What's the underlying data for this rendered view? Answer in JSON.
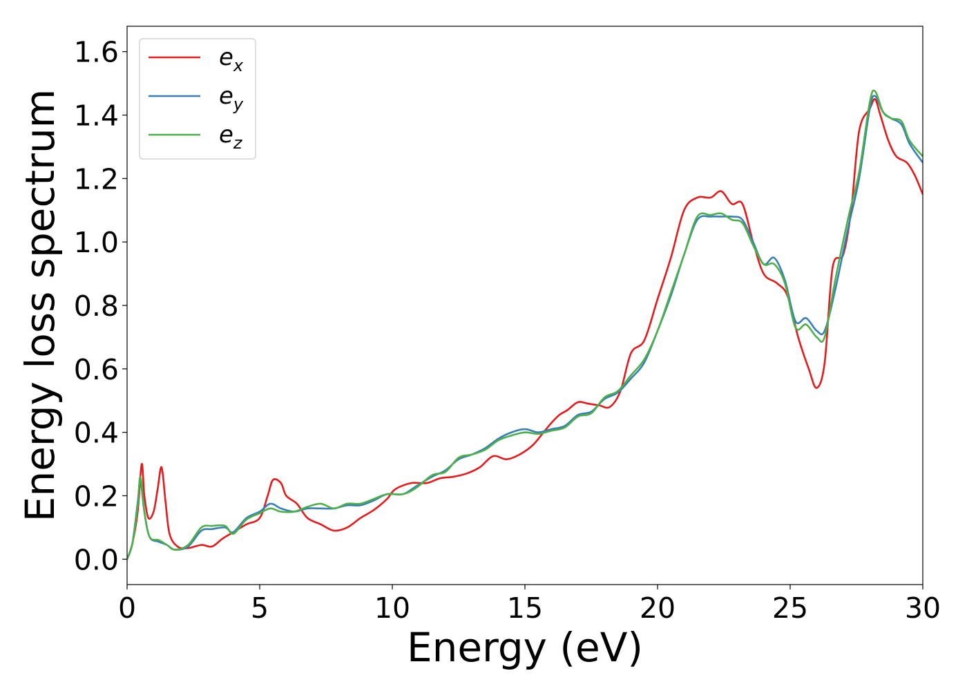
{
  "chart_data": {
    "type": "line",
    "xlabel": "Energy (eV)",
    "ylabel": "Energy loss spectrum",
    "xlim": [
      0,
      30
    ],
    "ylim": [
      -0.08,
      1.68
    ],
    "xticks": [
      0,
      5,
      10,
      15,
      20,
      25,
      30
    ],
    "yticks": [
      0.0,
      0.2,
      0.4,
      0.6,
      0.8,
      1.0,
      1.2,
      1.4,
      1.6
    ],
    "xtick_labels": [
      "0",
      "5",
      "10",
      "15",
      "20",
      "25",
      "30"
    ],
    "ytick_labels": [
      "0.0",
      "0.2",
      "0.4",
      "0.6",
      "0.8",
      "1.0",
      "1.2",
      "1.4",
      "1.6"
    ],
    "grid": false,
    "legend_position": "top-left",
    "series": [
      {
        "name": "e_x",
        "base": "e",
        "sub": "x",
        "color": "#e41a1c",
        "points": [
          [
            0,
            0
          ],
          [
            0.2,
            0.05
          ],
          [
            0.4,
            0.15
          ],
          [
            0.55,
            0.3
          ],
          [
            0.65,
            0.2
          ],
          [
            0.8,
            0.13
          ],
          [
            1.0,
            0.15
          ],
          [
            1.15,
            0.22
          ],
          [
            1.3,
            0.29
          ],
          [
            1.45,
            0.18
          ],
          [
            1.6,
            0.08
          ],
          [
            1.9,
            0.04
          ],
          [
            2.3,
            0.035
          ],
          [
            2.8,
            0.045
          ],
          [
            3.2,
            0.04
          ],
          [
            3.6,
            0.065
          ],
          [
            4.0,
            0.085
          ],
          [
            4.5,
            0.11
          ],
          [
            5.0,
            0.13
          ],
          [
            5.3,
            0.2
          ],
          [
            5.5,
            0.25
          ],
          [
            5.8,
            0.24
          ],
          [
            6.0,
            0.2
          ],
          [
            6.4,
            0.175
          ],
          [
            6.8,
            0.13
          ],
          [
            7.3,
            0.11
          ],
          [
            7.8,
            0.09
          ],
          [
            8.3,
            0.1
          ],
          [
            8.8,
            0.13
          ],
          [
            9.3,
            0.155
          ],
          [
            9.8,
            0.19
          ],
          [
            10.1,
            0.22
          ],
          [
            10.7,
            0.24
          ],
          [
            11.3,
            0.24
          ],
          [
            11.8,
            0.255
          ],
          [
            12.3,
            0.26
          ],
          [
            12.8,
            0.27
          ],
          [
            13.3,
            0.29
          ],
          [
            13.8,
            0.325
          ],
          [
            14.3,
            0.315
          ],
          [
            14.8,
            0.33
          ],
          [
            15.3,
            0.36
          ],
          [
            15.7,
            0.4
          ],
          [
            16.0,
            0.43
          ],
          [
            16.3,
            0.455
          ],
          [
            16.6,
            0.47
          ],
          [
            17.0,
            0.495
          ],
          [
            17.4,
            0.49
          ],
          [
            17.8,
            0.485
          ],
          [
            18.2,
            0.48
          ],
          [
            18.6,
            0.53
          ],
          [
            19.0,
            0.65
          ],
          [
            19.5,
            0.69
          ],
          [
            20.0,
            0.82
          ],
          [
            20.5,
            0.95
          ],
          [
            21.0,
            1.1
          ],
          [
            21.5,
            1.14
          ],
          [
            22.0,
            1.14
          ],
          [
            22.4,
            1.16
          ],
          [
            22.8,
            1.12
          ],
          [
            23.2,
            1.12
          ],
          [
            23.6,
            1.0
          ],
          [
            24.0,
            0.9
          ],
          [
            24.5,
            0.87
          ],
          [
            24.9,
            0.83
          ],
          [
            25.3,
            0.7
          ],
          [
            25.7,
            0.6
          ],
          [
            26.0,
            0.54
          ],
          [
            26.3,
            0.62
          ],
          [
            26.6,
            0.92
          ],
          [
            27.0,
            0.96
          ],
          [
            27.3,
            1.1
          ],
          [
            27.6,
            1.35
          ],
          [
            28.0,
            1.42
          ],
          [
            28.2,
            1.45
          ],
          [
            28.4,
            1.4
          ],
          [
            28.7,
            1.32
          ],
          [
            29.0,
            1.27
          ],
          [
            29.4,
            1.25
          ],
          [
            29.7,
            1.21
          ],
          [
            30.0,
            1.15
          ]
        ]
      },
      {
        "name": "e_y",
        "base": "e",
        "sub": "y",
        "color": "#377eb8",
        "points": [
          [
            0,
            0
          ],
          [
            0.2,
            0.05
          ],
          [
            0.4,
            0.18
          ],
          [
            0.5,
            0.25
          ],
          [
            0.65,
            0.15
          ],
          [
            0.85,
            0.07
          ],
          [
            1.2,
            0.055
          ],
          [
            1.5,
            0.045
          ],
          [
            1.8,
            0.03
          ],
          [
            2.3,
            0.04
          ],
          [
            2.8,
            0.09
          ],
          [
            3.2,
            0.095
          ],
          [
            3.7,
            0.1
          ],
          [
            4.0,
            0.085
          ],
          [
            4.5,
            0.13
          ],
          [
            5.0,
            0.15
          ],
          [
            5.4,
            0.175
          ],
          [
            5.8,
            0.16
          ],
          [
            6.3,
            0.15
          ],
          [
            6.8,
            0.16
          ],
          [
            7.3,
            0.16
          ],
          [
            7.8,
            0.16
          ],
          [
            8.3,
            0.17
          ],
          [
            8.8,
            0.17
          ],
          [
            9.3,
            0.185
          ],
          [
            9.8,
            0.205
          ],
          [
            10.4,
            0.205
          ],
          [
            10.9,
            0.23
          ],
          [
            11.5,
            0.26
          ],
          [
            12.0,
            0.28
          ],
          [
            12.5,
            0.315
          ],
          [
            13.0,
            0.33
          ],
          [
            13.5,
            0.35
          ],
          [
            14.0,
            0.38
          ],
          [
            14.5,
            0.4
          ],
          [
            15.0,
            0.41
          ],
          [
            15.5,
            0.4
          ],
          [
            16.0,
            0.41
          ],
          [
            16.5,
            0.42
          ],
          [
            17.0,
            0.455
          ],
          [
            17.5,
            0.465
          ],
          [
            18.0,
            0.505
          ],
          [
            18.5,
            0.525
          ],
          [
            19.0,
            0.57
          ],
          [
            19.5,
            0.62
          ],
          [
            20.0,
            0.72
          ],
          [
            20.5,
            0.83
          ],
          [
            21.0,
            0.96
          ],
          [
            21.5,
            1.07
          ],
          [
            22.0,
            1.08
          ],
          [
            22.4,
            1.08
          ],
          [
            22.8,
            1.08
          ],
          [
            23.2,
            1.07
          ],
          [
            23.6,
            1.0
          ],
          [
            24.0,
            0.93
          ],
          [
            24.4,
            0.95
          ],
          [
            24.8,
            0.88
          ],
          [
            25.2,
            0.75
          ],
          [
            25.6,
            0.76
          ],
          [
            26.0,
            0.72
          ],
          [
            26.3,
            0.72
          ],
          [
            26.7,
            0.85
          ],
          [
            27.2,
            1.05
          ],
          [
            27.6,
            1.2
          ],
          [
            28.0,
            1.42
          ],
          [
            28.2,
            1.46
          ],
          [
            28.5,
            1.41
          ],
          [
            28.8,
            1.39
          ],
          [
            29.2,
            1.37
          ],
          [
            29.5,
            1.31
          ],
          [
            30.0,
            1.25
          ]
        ]
      },
      {
        "name": "e_z",
        "base": "e",
        "sub": "z",
        "color": "#4daf4a",
        "points": [
          [
            0,
            0
          ],
          [
            0.2,
            0.05
          ],
          [
            0.4,
            0.17
          ],
          [
            0.5,
            0.26
          ],
          [
            0.65,
            0.15
          ],
          [
            0.85,
            0.07
          ],
          [
            1.2,
            0.06
          ],
          [
            1.5,
            0.045
          ],
          [
            1.8,
            0.03
          ],
          [
            2.3,
            0.045
          ],
          [
            2.8,
            0.1
          ],
          [
            3.2,
            0.105
          ],
          [
            3.7,
            0.105
          ],
          [
            4.0,
            0.08
          ],
          [
            4.5,
            0.125
          ],
          [
            5.0,
            0.145
          ],
          [
            5.4,
            0.16
          ],
          [
            5.8,
            0.15
          ],
          [
            6.3,
            0.15
          ],
          [
            6.8,
            0.165
          ],
          [
            7.3,
            0.175
          ],
          [
            7.8,
            0.16
          ],
          [
            8.3,
            0.175
          ],
          [
            8.8,
            0.175
          ],
          [
            9.3,
            0.19
          ],
          [
            9.8,
            0.205
          ],
          [
            10.4,
            0.205
          ],
          [
            10.9,
            0.225
          ],
          [
            11.5,
            0.265
          ],
          [
            12.0,
            0.275
          ],
          [
            12.5,
            0.32
          ],
          [
            13.0,
            0.33
          ],
          [
            13.5,
            0.345
          ],
          [
            14.0,
            0.375
          ],
          [
            14.5,
            0.39
          ],
          [
            15.0,
            0.4
          ],
          [
            15.5,
            0.395
          ],
          [
            16.0,
            0.405
          ],
          [
            16.5,
            0.415
          ],
          [
            17.0,
            0.45
          ],
          [
            17.5,
            0.46
          ],
          [
            18.0,
            0.51
          ],
          [
            18.5,
            0.53
          ],
          [
            19.0,
            0.58
          ],
          [
            19.5,
            0.63
          ],
          [
            20.0,
            0.72
          ],
          [
            20.5,
            0.84
          ],
          [
            21.0,
            0.96
          ],
          [
            21.5,
            1.08
          ],
          [
            22.0,
            1.085
          ],
          [
            22.4,
            1.09
          ],
          [
            22.8,
            1.07
          ],
          [
            23.2,
            1.06
          ],
          [
            23.6,
            0.99
          ],
          [
            24.0,
            0.93
          ],
          [
            24.4,
            0.93
          ],
          [
            24.8,
            0.87
          ],
          [
            25.2,
            0.73
          ],
          [
            25.6,
            0.74
          ],
          [
            26.0,
            0.7
          ],
          [
            26.3,
            0.7
          ],
          [
            26.7,
            0.88
          ],
          [
            27.2,
            1.08
          ],
          [
            27.6,
            1.22
          ],
          [
            28.0,
            1.44
          ],
          [
            28.2,
            1.475
          ],
          [
            28.5,
            1.41
          ],
          [
            28.8,
            1.39
          ],
          [
            29.2,
            1.38
          ],
          [
            29.5,
            1.32
          ],
          [
            30.0,
            1.27
          ]
        ]
      }
    ]
  }
}
